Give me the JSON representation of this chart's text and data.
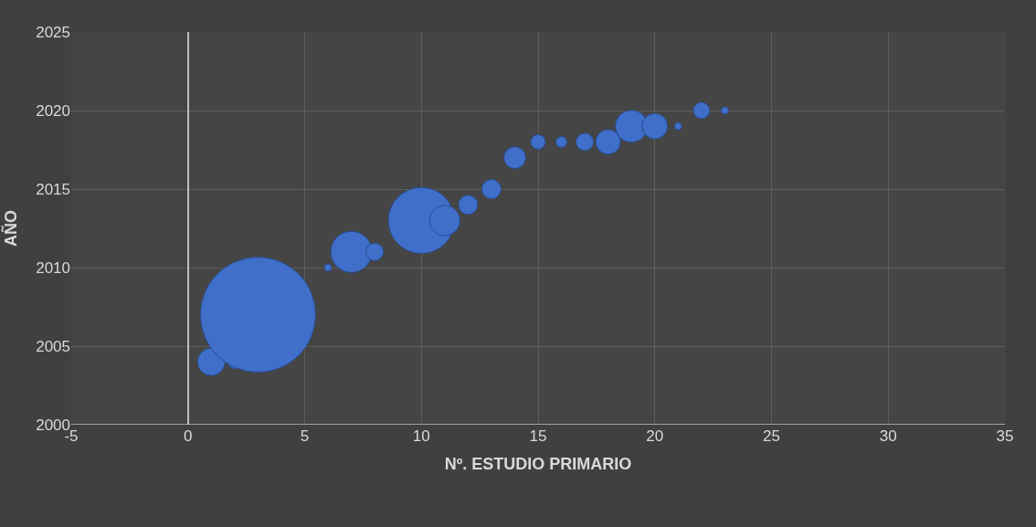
{
  "chart_data": {
    "type": "bubble",
    "xlabel": "Nº. ESTUDIO PRIMARIO",
    "ylabel": "AÑO",
    "x": [
      1,
      2,
      3,
      6,
      7,
      8,
      10,
      11,
      12,
      13,
      14,
      15,
      16,
      17,
      18,
      19,
      20,
      21,
      22,
      23
    ],
    "values": [
      2004,
      2004,
      2007,
      2010,
      2011,
      2011,
      2013,
      2013,
      2014,
      2015,
      2017,
      2018,
      2018,
      2018,
      2018,
      2019,
      2019,
      2019,
      2020,
      2020
    ],
    "sizes": [
      0.057,
      0.014,
      1,
      0.004,
      0.128,
      0.023,
      0.33,
      0.069,
      0.028,
      0.028,
      0.036,
      0.016,
      0.009,
      0.023,
      0.046,
      0.077,
      0.049,
      0.004,
      0.02,
      0.004
    ],
    "color": "#3f6fc9",
    "xlim": [
      -5,
      35
    ],
    "xticks": [
      -5,
      0,
      5,
      10,
      15,
      20,
      25,
      30,
      35
    ],
    "ylim": [
      2000,
      2025
    ],
    "yticks": [
      2000,
      2005,
      2010,
      2015,
      2020,
      2025
    ],
    "grid": true,
    "legend": false
  }
}
